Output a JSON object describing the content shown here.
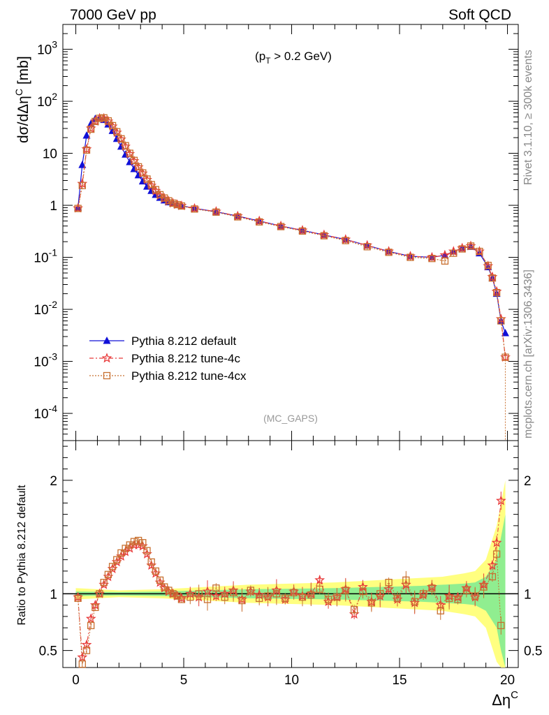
{
  "header": {
    "left": "7000 GeV pp",
    "right": "Soft QCD"
  },
  "side_labels": {
    "rivet": "Rivet 3.1.10, ≥ 300k events",
    "mcplots": "mcplots.cern.ch [arXiv:1306.3436]"
  },
  "annotation": {
    "cut": "(p",
    "cut_sub": "T",
    "cut_rest": " > 0.2 GeV)",
    "analysis": "(MC_GAPS)"
  },
  "colors": {
    "default": "#1010d8",
    "tune4c": "#e83a3a",
    "tune4cx": "#c87030",
    "band_yellow": "#ffff80",
    "band_green": "#90ee90"
  },
  "chart_data": [
    {
      "type": "line",
      "scale": "log",
      "xlim": [
        -0.6,
        20.5
      ],
      "ylim": [
        3e-05,
        3000
      ],
      "ylabel": "dσ/dΔη",
      "ylabel_sup": "C",
      "ylabel_unit": " [mb]",
      "yticks": [
        "10^-4",
        "10^-3",
        "10^-2",
        "10^-1",
        "1",
        "10",
        "10^2",
        "10^3"
      ],
      "legend_position": "bottom-left",
      "series": [
        {
          "name": "Pythia 8.212 default",
          "marker": "triangle",
          "x": [
            0.1,
            0.3,
            0.5,
            0.7,
            0.9,
            1.1,
            1.3,
            1.5,
            1.7,
            1.9,
            2.1,
            2.3,
            2.5,
            2.7,
            2.9,
            3.1,
            3.3,
            3.5,
            3.7,
            3.9,
            4.1,
            4.3,
            4.5,
            4.7,
            4.9,
            5.5,
            6.5,
            7.5,
            8.5,
            9.5,
            10.5,
            11.5,
            12.5,
            13.5,
            14.5,
            15.5,
            16.5,
            17.1,
            17.5,
            17.9,
            18.3,
            18.7,
            19.1,
            19.3,
            19.5,
            19.7,
            19.9
          ],
          "y": [
            0.9,
            6,
            22,
            37,
            46,
            48,
            44,
            36,
            27,
            19,
            13.5,
            9.5,
            6.8,
            5,
            3.8,
            2.9,
            2.3,
            1.9,
            1.6,
            1.4,
            1.25,
            1.15,
            1.08,
            1.02,
            0.98,
            0.88,
            0.75,
            0.62,
            0.5,
            0.4,
            0.33,
            0.27,
            0.22,
            0.17,
            0.13,
            0.105,
            0.1,
            0.11,
            0.13,
            0.15,
            0.16,
            0.12,
            0.065,
            0.04,
            0.02,
            0.006,
            0.0035
          ]
        },
        {
          "name": "Pythia 8.212 tune-4c",
          "marker": "star",
          "x": [
            0.1,
            0.3,
            0.5,
            0.7,
            0.9,
            1.1,
            1.3,
            1.5,
            1.7,
            1.9,
            2.1,
            2.3,
            2.5,
            2.7,
            2.9,
            3.1,
            3.3,
            3.5,
            3.7,
            3.9,
            4.1,
            4.3,
            4.5,
            4.7,
            4.9,
            5.5,
            6.5,
            7.5,
            8.5,
            9.5,
            10.5,
            11.5,
            12.5,
            13.5,
            14.5,
            15.5,
            16.5,
            17.1,
            17.5,
            17.9,
            18.3,
            18.7,
            19.1,
            19.3,
            19.5,
            19.7,
            19.9
          ],
          "y": [
            0.88,
            2.6,
            12,
            30,
            41,
            47,
            47,
            41,
            33,
            25,
            18.5,
            13.5,
            9.7,
            7.1,
            5.4,
            4.1,
            3.1,
            2.4,
            1.9,
            1.55,
            1.35,
            1.2,
            1.1,
            1.03,
            0.98,
            0.87,
            0.76,
            0.62,
            0.5,
            0.4,
            0.33,
            0.27,
            0.22,
            0.17,
            0.13,
            0.105,
            0.1,
            0.11,
            0.13,
            0.15,
            0.165,
            0.13,
            0.068,
            0.042,
            0.022,
            0.0065,
            0.0012
          ]
        },
        {
          "name": "Pythia 8.212 tune-4cx",
          "marker": "square",
          "x": [
            0.1,
            0.3,
            0.5,
            0.7,
            0.9,
            1.1,
            1.3,
            1.5,
            1.7,
            1.9,
            2.1,
            2.3,
            2.5,
            2.7,
            2.9,
            3.1,
            3.3,
            3.5,
            3.7,
            3.9,
            4.1,
            4.3,
            4.5,
            4.7,
            4.9,
            5.5,
            6.5,
            7.5,
            8.5,
            9.5,
            10.5,
            11.5,
            12.5,
            13.5,
            14.5,
            15.5,
            16.5,
            17.1,
            17.5,
            17.9,
            18.3,
            18.7,
            19.1,
            19.3,
            19.5,
            19.7,
            19.9
          ],
          "y": [
            0.87,
            2.4,
            11.5,
            29,
            41,
            47,
            48,
            42,
            34,
            26,
            19,
            14,
            10,
            7.3,
            5.5,
            4.2,
            3.2,
            2.5,
            2,
            1.6,
            1.38,
            1.22,
            1.1,
            1.03,
            0.97,
            0.85,
            0.74,
            0.6,
            0.48,
            0.39,
            0.32,
            0.26,
            0.21,
            0.16,
            0.125,
            0.1,
            0.095,
            0.085,
            0.12,
            0.145,
            0.165,
            0.13,
            0.07,
            0.04,
            0.021,
            0.006,
            0.0012
          ]
        }
      ]
    },
    {
      "type": "line",
      "xlim": [
        -0.6,
        20.5
      ],
      "ylim": [
        0.35,
        2.35
      ],
      "xlabel": "Δη",
      "xlabel_sup": "C",
      "ylabel": "Ratio to Pythia 8.212 default",
      "xticks": [
        0,
        5,
        10,
        15,
        20
      ],
      "yticks": [
        0.5,
        1,
        2
      ],
      "reference_line": 1,
      "bands": {
        "x": [
          0,
          2,
          4,
          6,
          8,
          10,
          12,
          14,
          16,
          17,
          18,
          18.5,
          19,
          19.5,
          19.7,
          19.9
        ],
        "yellow_half_width": [
          0.05,
          0.03,
          0.04,
          0.06,
          0.08,
          0.09,
          0.1,
          0.12,
          0.14,
          0.15,
          0.18,
          0.2,
          0.3,
          0.6,
          0.8,
          1.0
        ],
        "green_half_width": [
          0.02,
          0.015,
          0.02,
          0.03,
          0.04,
          0.045,
          0.05,
          0.06,
          0.07,
          0.08,
          0.09,
          0.1,
          0.15,
          0.3,
          0.5,
          0.7
        ]
      },
      "series": [
        {
          "name": "Pythia 8.212 tune-4c",
          "marker": "star",
          "x": [
            0.1,
            0.3,
            0.5,
            0.7,
            0.9,
            1.1,
            1.3,
            1.5,
            1.7,
            1.9,
            2.1,
            2.3,
            2.5,
            2.7,
            2.9,
            3.1,
            3.3,
            3.5,
            3.7,
            3.9,
            4.1,
            4.3,
            4.5,
            4.7,
            4.9,
            5.3,
            5.7,
            6.1,
            6.5,
            6.9,
            7.3,
            7.7,
            8.1,
            8.5,
            8.9,
            9.3,
            9.7,
            10.1,
            10.5,
            10.9,
            11.3,
            11.7,
            12.1,
            12.5,
            12.9,
            13.3,
            13.7,
            14.1,
            14.5,
            14.9,
            15.3,
            15.7,
            16.1,
            16.5,
            16.9,
            17.3,
            17.7,
            18.1,
            18.5,
            18.9,
            19.3,
            19.5,
            19.7
          ],
          "y": [
            0.97,
            0.44,
            0.55,
            0.78,
            0.9,
            1.0,
            1.08,
            1.15,
            1.22,
            1.28,
            1.33,
            1.37,
            1.4,
            1.43,
            1.43,
            1.42,
            1.35,
            1.25,
            1.18,
            1.1,
            1.05,
            1.02,
            1.0,
            0.98,
            0.96,
            1.0,
            0.97,
            1.02,
            0.98,
            1.0,
            1.03,
            0.95,
            1.02,
            0.99,
            0.97,
            1.03,
            0.95,
            1.02,
            0.98,
            1.0,
            1.12,
            0.93,
            0.97,
            1.04,
            0.82,
            1.06,
            0.93,
            0.98,
            1.04,
            0.95,
            1.08,
            0.92,
            0.99,
            1.06,
            0.9,
            0.98,
            0.97,
            1.05,
            0.97,
            1.08,
            1.25,
            1.45,
            1.82
          ]
        },
        {
          "name": "Pythia 8.212 tune-4cx",
          "marker": "square",
          "x": [
            0.1,
            0.3,
            0.5,
            0.7,
            0.9,
            1.1,
            1.3,
            1.5,
            1.7,
            1.9,
            2.1,
            2.3,
            2.5,
            2.7,
            2.9,
            3.1,
            3.3,
            3.5,
            3.7,
            3.9,
            4.1,
            4.3,
            4.5,
            4.7,
            4.9,
            5.3,
            5.7,
            6.1,
            6.5,
            6.9,
            7.3,
            7.7,
            8.1,
            8.5,
            8.9,
            9.3,
            9.7,
            10.1,
            10.5,
            10.9,
            11.3,
            11.7,
            12.1,
            12.5,
            12.9,
            13.3,
            13.7,
            14.1,
            14.5,
            14.9,
            15.3,
            15.7,
            16.1,
            16.5,
            16.9,
            17.3,
            17.7,
            18.1,
            18.5,
            18.9,
            19.3,
            19.5,
            19.7
          ],
          "y": [
            0.96,
            0.38,
            0.5,
            0.72,
            0.88,
            1.0,
            1.1,
            1.17,
            1.24,
            1.3,
            1.36,
            1.4,
            1.43,
            1.46,
            1.47,
            1.45,
            1.38,
            1.28,
            1.2,
            1.12,
            1.06,
            1.03,
            1.0,
            0.98,
            0.95,
            0.97,
            1.0,
            0.95,
            1.05,
            0.97,
            1.01,
            0.94,
            1.03,
            0.96,
            0.98,
            1.0,
            0.96,
            1.01,
            0.97,
            0.99,
            1.04,
            0.95,
            0.97,
            1.03,
            0.86,
            1.02,
            0.92,
            1.0,
            1.1,
            0.96,
            1.12,
            0.93,
            1.0,
            1.05,
            0.85,
            0.96,
            0.95,
            1.03,
            0.98,
            1.06,
            1.15,
            1.35,
            0.72
          ]
        }
      ]
    }
  ]
}
